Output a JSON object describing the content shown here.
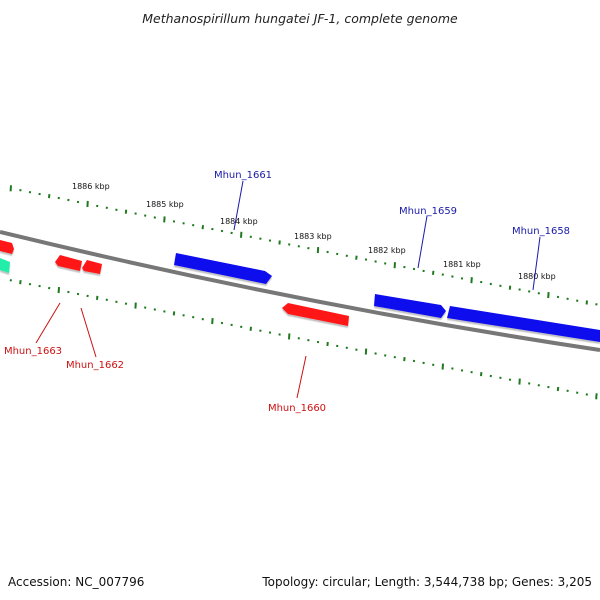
{
  "title": "Methanospirillum hungatei JF-1, complete genome",
  "footer": {
    "accession": "Accession: NC_007796",
    "summary": "Topology: circular; Length: 3,544,738 bp; Genes: 3,205"
  },
  "colors": {
    "forward_gene": "#1010ee",
    "reverse_gene": "#ff1414",
    "rna_gene": "#22eeaa",
    "backbone": "#777777",
    "ticks": "#1f7a1f",
    "forward_label": "#1a1aa8",
    "reverse_label": "#cc1111"
  },
  "scale_labels": [
    {
      "text": "1886 kbp"
    },
    {
      "text": "1885 kbp"
    },
    {
      "text": "1884 kbp"
    },
    {
      "text": "1883 kbp"
    },
    {
      "text": "1882 kbp"
    },
    {
      "text": "1881 kbp"
    },
    {
      "text": "1880 kbp"
    }
  ],
  "genes": [
    {
      "name": "Mhun_1658",
      "strand": "forward"
    },
    {
      "name": "Mhun_1659",
      "strand": "forward"
    },
    {
      "name": "Mhun_1660",
      "strand": "reverse"
    },
    {
      "name": "Mhun_1661",
      "strand": "forward"
    },
    {
      "name": "Mhun_1662",
      "strand": "reverse"
    },
    {
      "name": "Mhun_1663",
      "strand": "reverse"
    }
  ]
}
